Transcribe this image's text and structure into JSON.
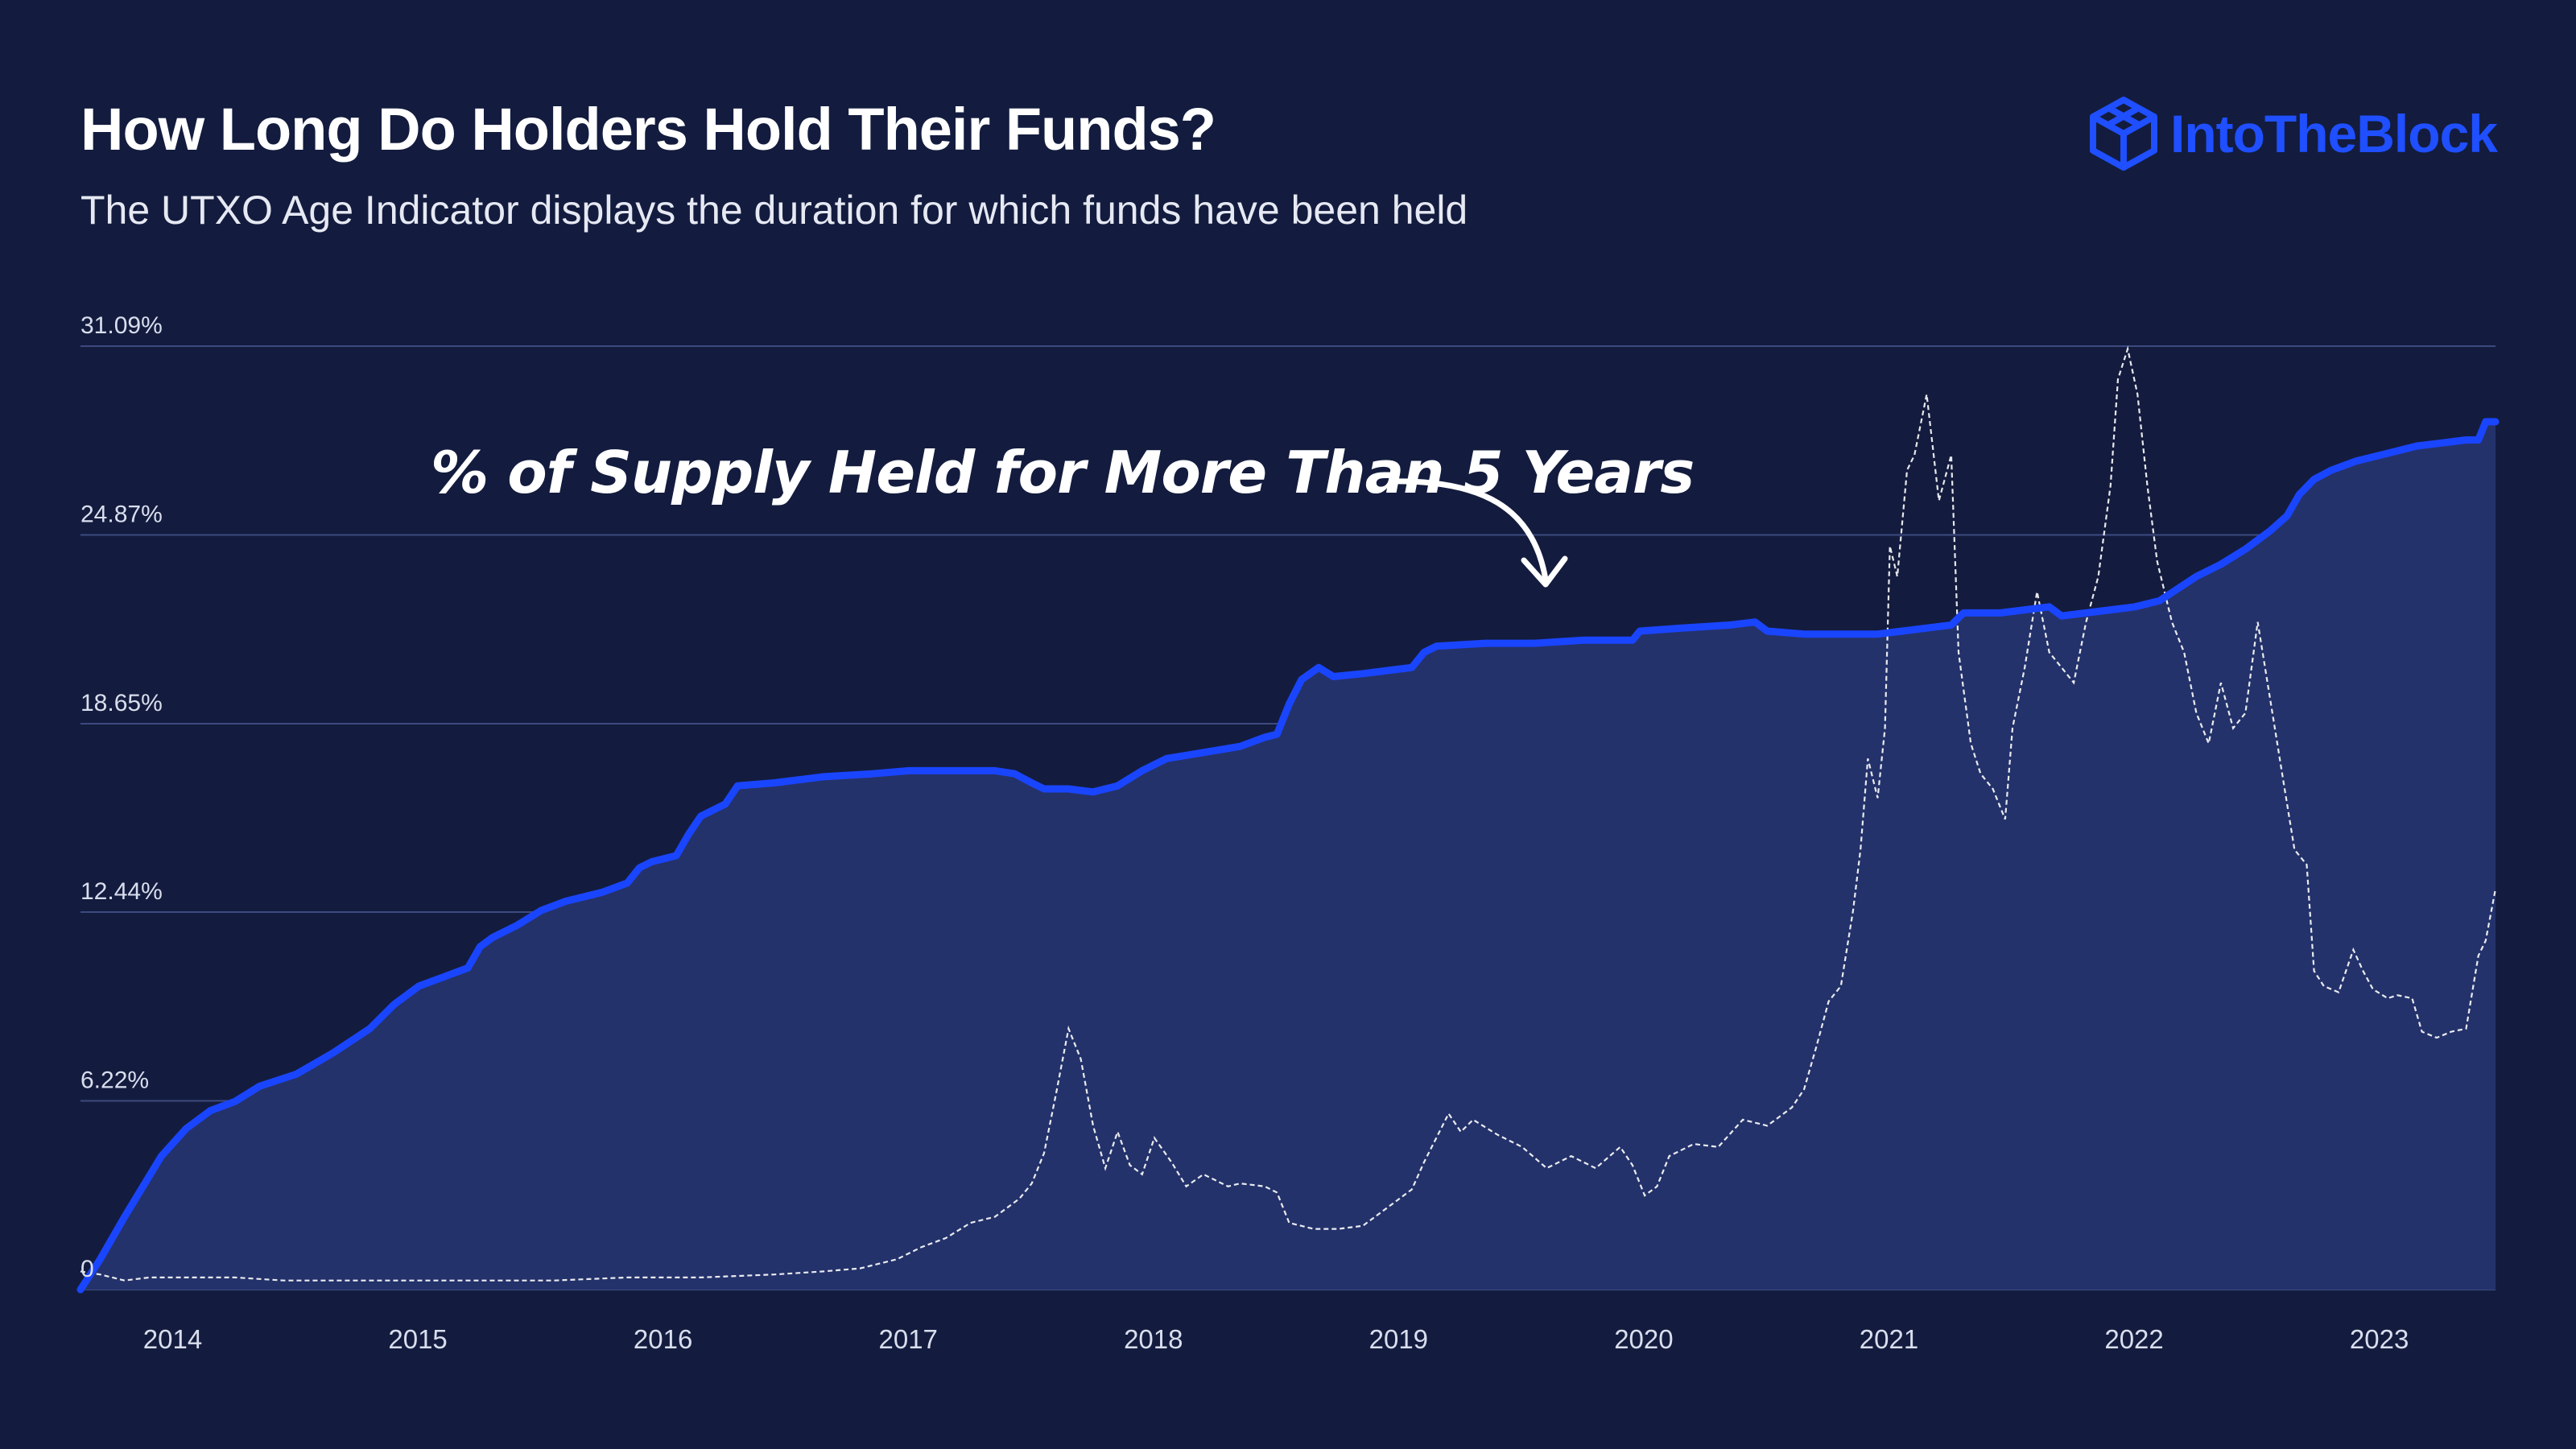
{
  "header": {
    "title": "How Long Do Holders Hold Their Funds?",
    "subtitle": "The UTXO Age Indicator displays the duration for which funds have been held",
    "brand": "IntoTheBlock"
  },
  "colors": {
    "background": "#131c3e",
    "main_line": "#1a45ff",
    "area_fill": "#24326b",
    "secondary_line": "#ffffff",
    "grid": "#3d4a80",
    "brand": "#1f4fff"
  },
  "chart_data": {
    "type": "area",
    "annotation": "% of Supply Held for More Than 5 Years",
    "ylim": [
      0,
      31.09
    ],
    "y_ticks": [
      "0",
      "6.22%",
      "12.44%",
      "18.65%",
      "24.87%",
      "31.09%"
    ],
    "y_tick_values": [
      0,
      6.22,
      12.44,
      18.65,
      24.87,
      31.09
    ],
    "xlim": [
      2013.67,
      2023.52
    ],
    "x_ticks": [
      "2014",
      "2015",
      "2016",
      "2017",
      "2018",
      "2019",
      "2020",
      "2021",
      "2022",
      "2023"
    ],
    "x_tick_values": [
      2014,
      2015,
      2016,
      2017,
      2018,
      2019,
      2020,
      2021,
      2022,
      2023
    ],
    "grid": "horizontal",
    "legend": "none",
    "series": [
      {
        "name": "% of Supply Held for More Than 5 Years",
        "style": "solid-area",
        "points": [
          [
            2013.67,
            0.0
          ],
          [
            2013.75,
            1.0
          ],
          [
            2013.85,
            2.4
          ],
          [
            2014.0,
            4.4
          ],
          [
            2014.1,
            5.3
          ],
          [
            2014.2,
            5.9
          ],
          [
            2014.3,
            6.2
          ],
          [
            2014.4,
            6.7
          ],
          [
            2014.55,
            7.1
          ],
          [
            2014.7,
            7.8
          ],
          [
            2014.85,
            8.6
          ],
          [
            2014.95,
            9.4
          ],
          [
            2015.05,
            10.0
          ],
          [
            2015.15,
            10.3
          ],
          [
            2015.25,
            10.6
          ],
          [
            2015.3,
            11.3
          ],
          [
            2015.35,
            11.6
          ],
          [
            2015.45,
            12.0
          ],
          [
            2015.55,
            12.5
          ],
          [
            2015.65,
            12.8
          ],
          [
            2015.8,
            13.1
          ],
          [
            2015.9,
            13.4
          ],
          [
            2015.95,
            13.9
          ],
          [
            2016.0,
            14.1
          ],
          [
            2016.1,
            14.3
          ],
          [
            2016.15,
            15.0
          ],
          [
            2016.2,
            15.6
          ],
          [
            2016.3,
            16.0
          ],
          [
            2016.35,
            16.6
          ],
          [
            2016.5,
            16.7
          ],
          [
            2016.7,
            16.9
          ],
          [
            2016.9,
            17.0
          ],
          [
            2017.05,
            17.1
          ],
          [
            2017.2,
            17.1
          ],
          [
            2017.4,
            17.1
          ],
          [
            2017.48,
            17.0
          ],
          [
            2017.55,
            16.7
          ],
          [
            2017.6,
            16.5
          ],
          [
            2017.7,
            16.5
          ],
          [
            2017.8,
            16.4
          ],
          [
            2017.9,
            16.6
          ],
          [
            2018.0,
            17.1
          ],
          [
            2018.1,
            17.5
          ],
          [
            2018.25,
            17.7
          ],
          [
            2018.4,
            17.9
          ],
          [
            2018.5,
            18.2
          ],
          [
            2018.55,
            18.3
          ],
          [
            2018.6,
            19.3
          ],
          [
            2018.65,
            20.1
          ],
          [
            2018.72,
            20.5
          ],
          [
            2018.78,
            20.2
          ],
          [
            2018.9,
            20.3
          ],
          [
            2019.0,
            20.4
          ],
          [
            2019.1,
            20.5
          ],
          [
            2019.15,
            21.0
          ],
          [
            2019.2,
            21.2
          ],
          [
            2019.4,
            21.3
          ],
          [
            2019.6,
            21.3
          ],
          [
            2019.8,
            21.4
          ],
          [
            2020.0,
            21.4
          ],
          [
            2020.03,
            21.7
          ],
          [
            2020.2,
            21.8
          ],
          [
            2020.4,
            21.9
          ],
          [
            2020.5,
            22.0
          ],
          [
            2020.55,
            21.7
          ],
          [
            2020.7,
            21.6
          ],
          [
            2020.9,
            21.6
          ],
          [
            2021.0,
            21.6
          ],
          [
            2021.1,
            21.7
          ],
          [
            2021.2,
            21.8
          ],
          [
            2021.3,
            21.9
          ],
          [
            2021.35,
            22.3
          ],
          [
            2021.5,
            22.3
          ],
          [
            2021.6,
            22.4
          ],
          [
            2021.7,
            22.5
          ],
          [
            2021.75,
            22.2
          ],
          [
            2021.85,
            22.3
          ],
          [
            2021.95,
            22.4
          ],
          [
            2022.05,
            22.5
          ],
          [
            2022.15,
            22.7
          ],
          [
            2022.3,
            23.5
          ],
          [
            2022.4,
            23.9
          ],
          [
            2022.5,
            24.4
          ],
          [
            2022.6,
            25.0
          ],
          [
            2022.67,
            25.5
          ],
          [
            2022.72,
            26.2
          ],
          [
            2022.78,
            26.7
          ],
          [
            2022.85,
            27.0
          ],
          [
            2022.95,
            27.3
          ],
          [
            2023.1,
            27.6
          ],
          [
            2023.2,
            27.8
          ],
          [
            2023.3,
            27.9
          ],
          [
            2023.4,
            28.0
          ],
          [
            2023.45,
            28.0
          ],
          [
            2023.48,
            28.6
          ],
          [
            2023.52,
            28.6
          ]
        ]
      },
      {
        "name": "",
        "style": "dashed-line",
        "points": [
          [
            2013.67,
            0.6
          ],
          [
            2013.75,
            0.5
          ],
          [
            2013.85,
            0.3
          ],
          [
            2013.95,
            0.4
          ],
          [
            2014.1,
            0.4
          ],
          [
            2014.3,
            0.4
          ],
          [
            2014.5,
            0.3
          ],
          [
            2014.7,
            0.3
          ],
          [
            2015.0,
            0.3
          ],
          [
            2015.3,
            0.3
          ],
          [
            2015.6,
            0.3
          ],
          [
            2015.9,
            0.4
          ],
          [
            2016.2,
            0.4
          ],
          [
            2016.5,
            0.5
          ],
          [
            2016.7,
            0.6
          ],
          [
            2016.85,
            0.7
          ],
          [
            2017.0,
            1.0
          ],
          [
            2017.1,
            1.4
          ],
          [
            2017.2,
            1.7
          ],
          [
            2017.3,
            2.2
          ],
          [
            2017.4,
            2.4
          ],
          [
            2017.5,
            3.0
          ],
          [
            2017.55,
            3.5
          ],
          [
            2017.6,
            4.5
          ],
          [
            2017.65,
            6.5
          ],
          [
            2017.7,
            8.6
          ],
          [
            2017.75,
            7.6
          ],
          [
            2017.8,
            5.4
          ],
          [
            2017.85,
            4.0
          ],
          [
            2017.9,
            5.2
          ],
          [
            2017.95,
            4.1
          ],
          [
            2018.0,
            3.8
          ],
          [
            2018.05,
            5.0
          ],
          [
            2018.12,
            4.2
          ],
          [
            2018.18,
            3.4
          ],
          [
            2018.25,
            3.8
          ],
          [
            2018.3,
            3.6
          ],
          [
            2018.35,
            3.4
          ],
          [
            2018.4,
            3.5
          ],
          [
            2018.5,
            3.4
          ],
          [
            2018.55,
            3.2
          ],
          [
            2018.6,
            2.2
          ],
          [
            2018.7,
            2.0
          ],
          [
            2018.8,
            2.0
          ],
          [
            2018.9,
            2.1
          ],
          [
            2019.0,
            2.7
          ],
          [
            2019.1,
            3.3
          ],
          [
            2019.15,
            4.2
          ],
          [
            2019.2,
            5.0
          ],
          [
            2019.25,
            5.8
          ],
          [
            2019.3,
            5.2
          ],
          [
            2019.35,
            5.6
          ],
          [
            2019.45,
            5.1
          ],
          [
            2019.55,
            4.7
          ],
          [
            2019.65,
            4.0
          ],
          [
            2019.75,
            4.4
          ],
          [
            2019.85,
            4.0
          ],
          [
            2019.95,
            4.7
          ],
          [
            2020.0,
            4.1
          ],
          [
            2020.05,
            3.1
          ],
          [
            2020.1,
            3.4
          ],
          [
            2020.15,
            4.4
          ],
          [
            2020.25,
            4.8
          ],
          [
            2020.35,
            4.7
          ],
          [
            2020.45,
            5.6
          ],
          [
            2020.55,
            5.4
          ],
          [
            2020.65,
            6.0
          ],
          [
            2020.7,
            6.6
          ],
          [
            2020.75,
            8.0
          ],
          [
            2020.8,
            9.5
          ],
          [
            2020.85,
            10.0
          ],
          [
            2020.9,
            12.5
          ],
          [
            2020.93,
            14.5
          ],
          [
            2020.96,
            17.5
          ],
          [
            2021.0,
            16.2
          ],
          [
            2021.03,
            18.5
          ],
          [
            2021.05,
            24.5
          ],
          [
            2021.08,
            23.5
          ],
          [
            2021.12,
            27.0
          ],
          [
            2021.15,
            27.5
          ],
          [
            2021.2,
            29.5
          ],
          [
            2021.25,
            26.0
          ],
          [
            2021.3,
            27.5
          ],
          [
            2021.33,
            21.0
          ],
          [
            2021.38,
            18.0
          ],
          [
            2021.42,
            17.0
          ],
          [
            2021.47,
            16.5
          ],
          [
            2021.52,
            15.5
          ],
          [
            2021.55,
            18.5
          ],
          [
            2021.6,
            20.5
          ],
          [
            2021.65,
            23.0
          ],
          [
            2021.7,
            21.0
          ],
          [
            2021.75,
            20.5
          ],
          [
            2021.8,
            20.0
          ],
          [
            2021.85,
            22.0
          ],
          [
            2021.9,
            23.5
          ],
          [
            2021.95,
            26.5
          ],
          [
            2021.98,
            30.0
          ],
          [
            2022.02,
            31.0
          ],
          [
            2022.06,
            29.5
          ],
          [
            2022.1,
            26.5
          ],
          [
            2022.14,
            24.0
          ],
          [
            2022.2,
            22.0
          ],
          [
            2022.25,
            21.0
          ],
          [
            2022.3,
            19.0
          ],
          [
            2022.35,
            18.0
          ],
          [
            2022.4,
            20.0
          ],
          [
            2022.45,
            18.5
          ],
          [
            2022.5,
            19.0
          ],
          [
            2022.55,
            22.0
          ],
          [
            2022.6,
            19.5
          ],
          [
            2022.65,
            17.0
          ],
          [
            2022.7,
            14.5
          ],
          [
            2022.75,
            14.0
          ],
          [
            2022.78,
            10.5
          ],
          [
            2022.82,
            10.0
          ],
          [
            2022.88,
            9.8
          ],
          [
            2022.94,
            11.2
          ],
          [
            2022.98,
            10.5
          ],
          [
            2023.02,
            9.9
          ],
          [
            2023.08,
            9.6
          ],
          [
            2023.12,
            9.7
          ],
          [
            2023.18,
            9.6
          ],
          [
            2023.22,
            8.5
          ],
          [
            2023.28,
            8.3
          ],
          [
            2023.34,
            8.5
          ],
          [
            2023.4,
            8.6
          ],
          [
            2023.45,
            11.0
          ],
          [
            2023.48,
            11.5
          ],
          [
            2023.52,
            13.2
          ]
        ]
      }
    ]
  }
}
